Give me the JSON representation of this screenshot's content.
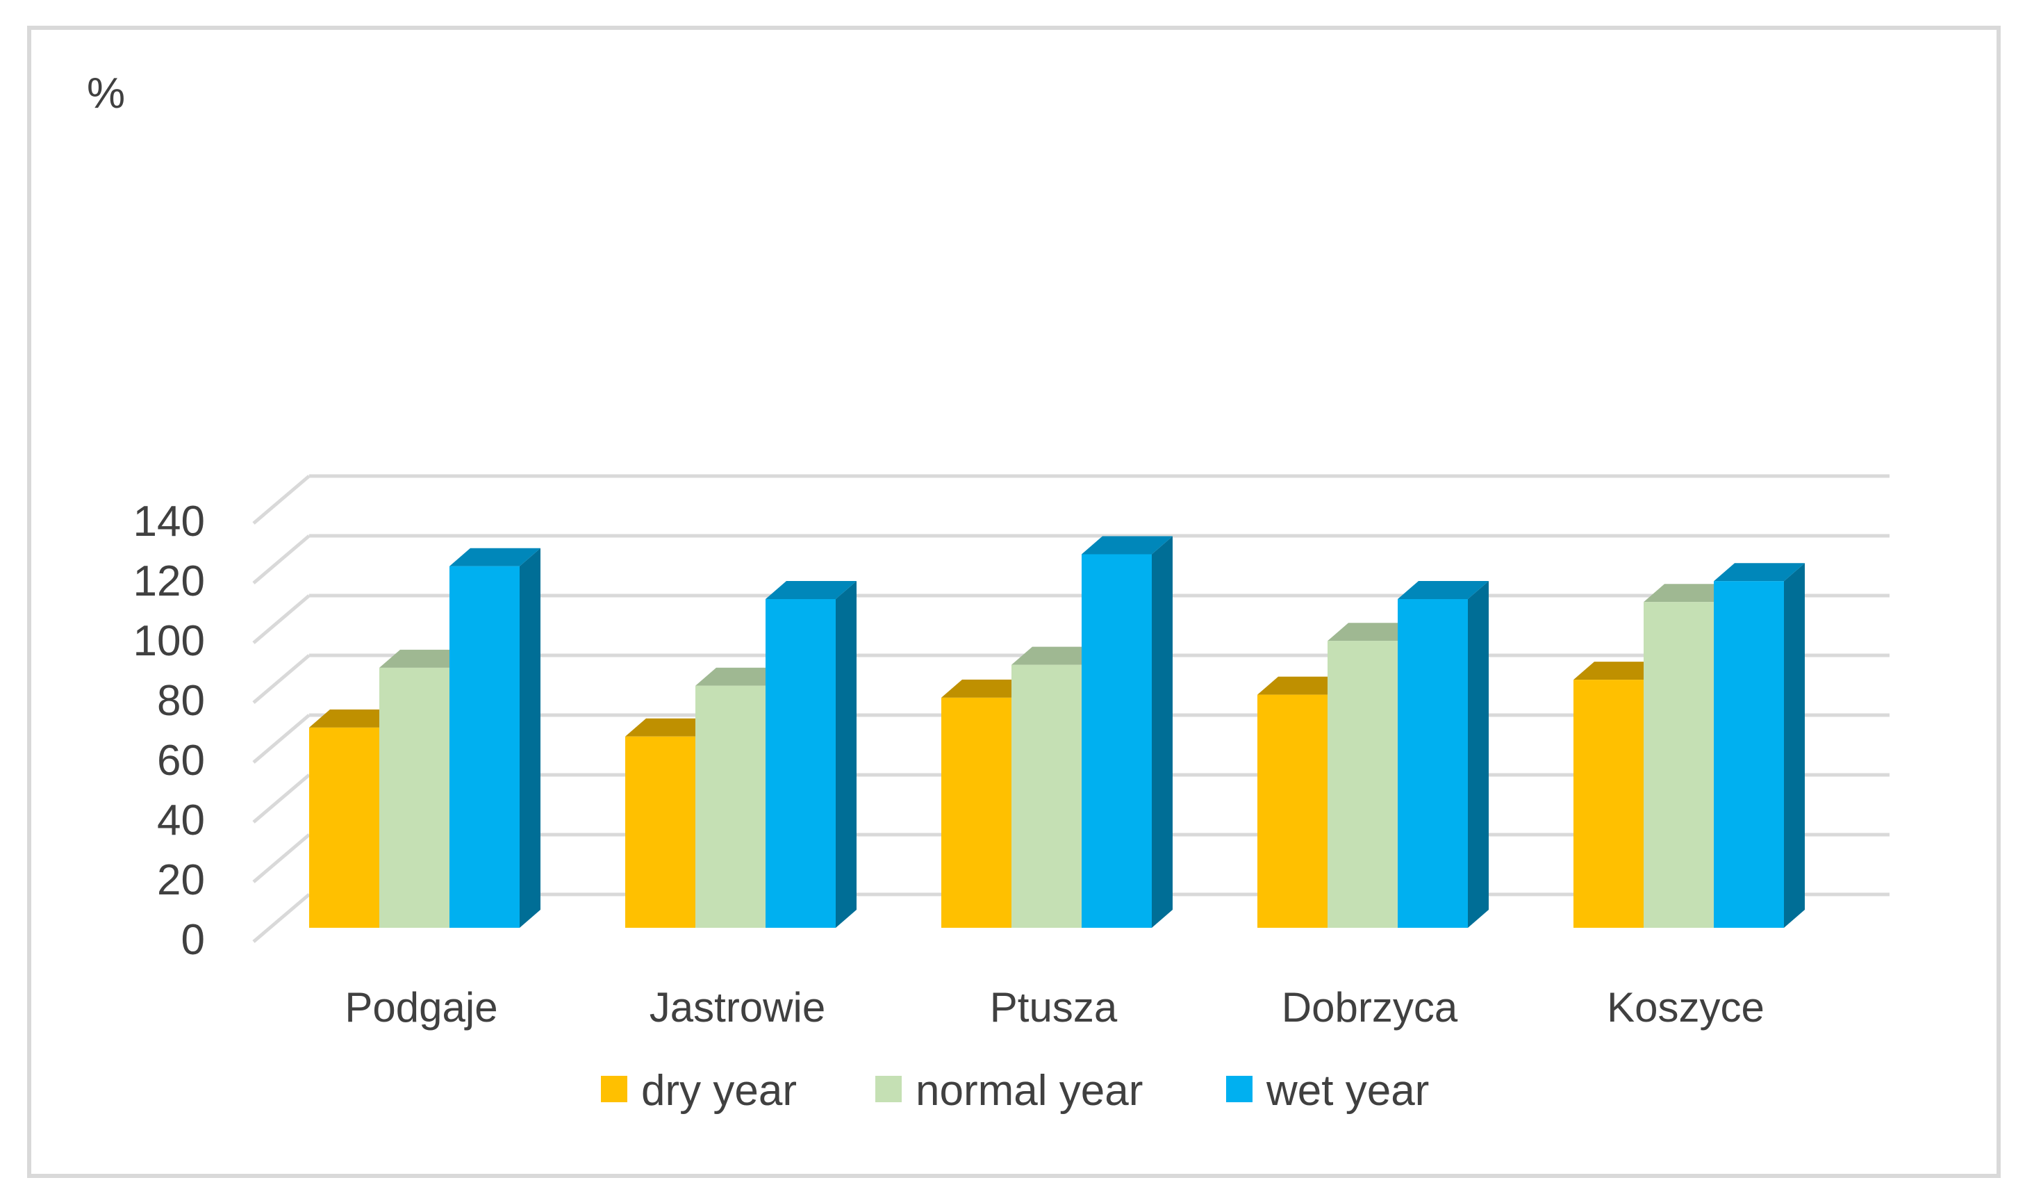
{
  "chart_data": {
    "type": "bar",
    "style": "3d-clustered-column",
    "title": "",
    "ylabel": "%",
    "xlabel": "",
    "ylim": [
      0,
      140
    ],
    "ytick_values": [
      0,
      20,
      40,
      60,
      80,
      100,
      120,
      140
    ],
    "ytick_labels": [
      "0",
      "20",
      "40",
      "60",
      "80",
      "100",
      "120",
      "140"
    ],
    "grid": true,
    "legend_position": "bottom",
    "categories": [
      "Podgaje",
      "Jastrowie",
      "Ptusza",
      "Dobrzyca",
      "Koszyce"
    ],
    "series": [
      {
        "name": "dry year",
        "color": "#FFC000",
        "top_color": "#BF9000",
        "side_color": "#BF9000",
        "values": [
          67,
          64,
          77,
          78,
          83
        ]
      },
      {
        "name": "normal year",
        "color": "#C5E0B4",
        "top_color": "#9FB892",
        "side_color": "#9FB892",
        "values": [
          87,
          81,
          88,
          96,
          109
        ]
      },
      {
        "name": "wet year",
        "color": "#00B0F0",
        "top_color": "#0087BA",
        "side_color": "#006E96",
        "values": [
          121,
          110,
          125,
          110,
          116
        ]
      }
    ]
  }
}
